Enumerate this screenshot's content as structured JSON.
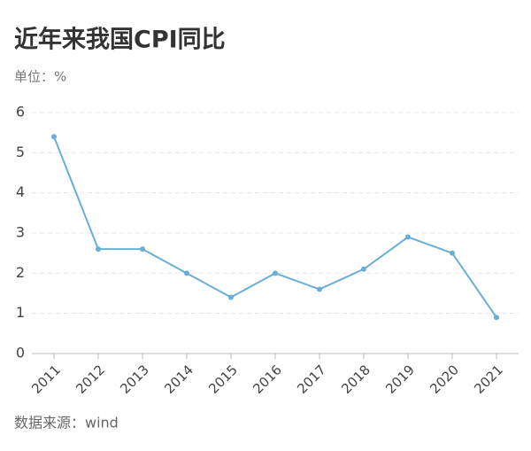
{
  "chart_data": {
    "type": "line",
    "title": "近年来我国CPI同比",
    "subtitle": "单位：%",
    "source": "数据来源：wind",
    "categories": [
      "2011",
      "2012",
      "2013",
      "2014",
      "2015",
      "2016",
      "2017",
      "2018",
      "2019",
      "2020",
      "2021"
    ],
    "values": [
      5.4,
      2.6,
      2.6,
      2.0,
      1.4,
      2.0,
      1.6,
      2.1,
      2.9,
      2.5,
      0.9
    ],
    "color": "#6aaed6",
    "ylim": [
      0,
      6
    ],
    "yticks": [
      0,
      1,
      2,
      3,
      4,
      5,
      6
    ],
    "grid": true
  }
}
